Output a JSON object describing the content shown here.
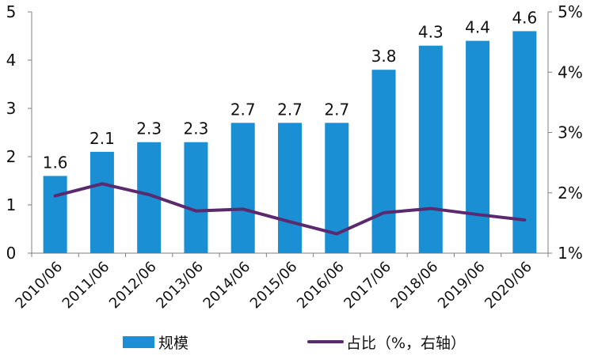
{
  "chart_data": {
    "type": "bar",
    "title": "",
    "xlabel": "",
    "ylabel": "",
    "categories": [
      "2010/06",
      "2011/06",
      "2012/06",
      "2013/06",
      "2014/06",
      "2015/06",
      "2016/06",
      "2017/06",
      "2018/06",
      "2019/06",
      "2020/06"
    ],
    "ylim": [
      0,
      5
    ],
    "y_ticks": [
      "0",
      "1",
      "2",
      "3",
      "4",
      "5"
    ],
    "y2lim": [
      1,
      5
    ],
    "y2_ticks": [
      "1%",
      "2%",
      "3%",
      "4%",
      "5%"
    ],
    "grid": false,
    "legend_position": "bottom",
    "series": [
      {
        "name": "规模",
        "type": "bar",
        "axis": "left",
        "color": "#1A8FD4",
        "values": [
          1.6,
          2.1,
          2.3,
          2.3,
          2.7,
          2.7,
          2.7,
          3.8,
          4.3,
          4.4,
          4.6
        ],
        "labels": [
          "1.6",
          "2.1",
          "2.3",
          "2.3",
          "2.7",
          "2.7",
          "2.7",
          "3.8",
          "4.3",
          "4.4",
          "4.6"
        ]
      },
      {
        "name": "占比（%，右轴）",
        "type": "line",
        "axis": "right",
        "color": "#5B2A6E",
        "values": [
          1.95,
          2.15,
          1.97,
          1.7,
          1.73,
          1.52,
          1.32,
          1.67,
          1.74,
          1.64,
          1.55
        ]
      }
    ]
  }
}
